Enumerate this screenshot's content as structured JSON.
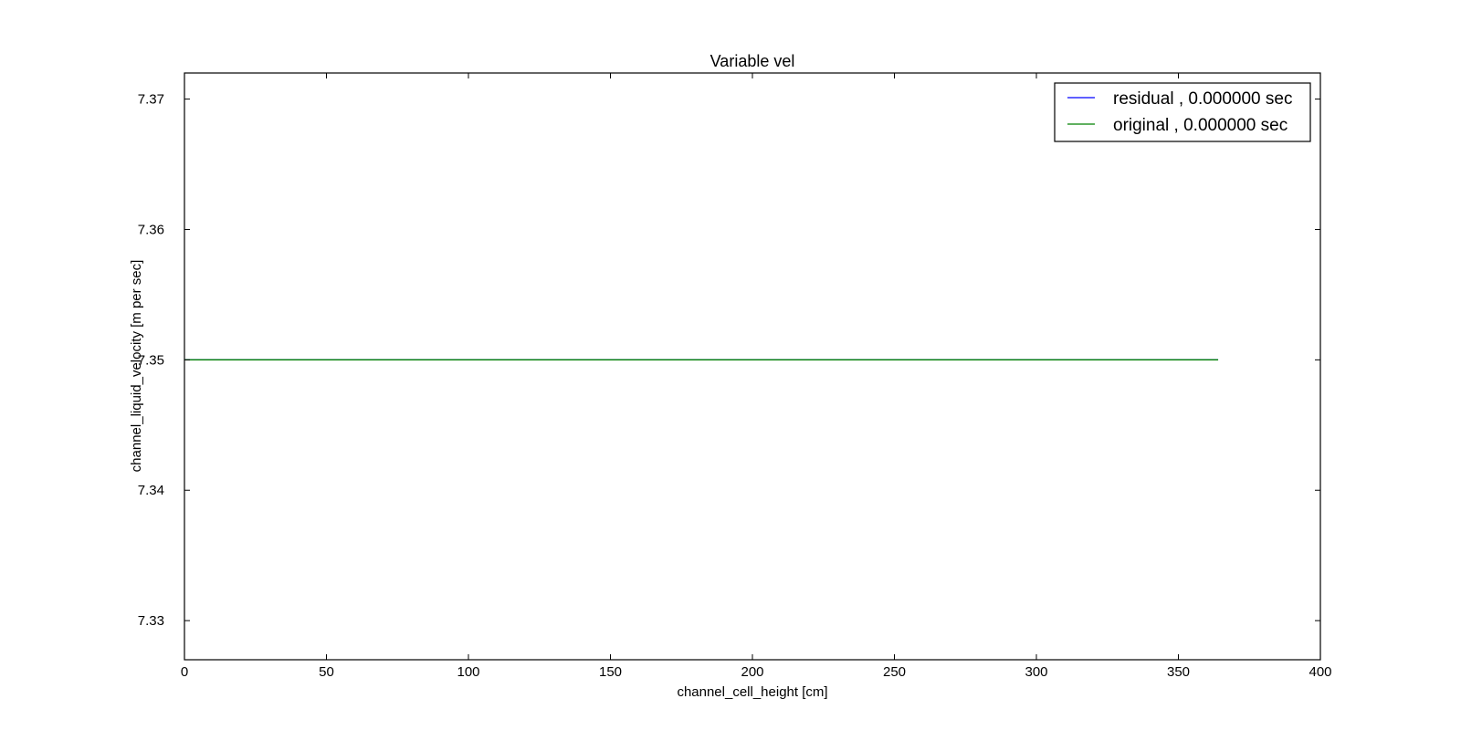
{
  "chart_data": {
    "type": "line",
    "title": "Variable vel",
    "xlabel": "channel_cell_height [cm]",
    "ylabel": "channel_liquid_velocity [m per sec]",
    "xlim": [
      0,
      400
    ],
    "ylim": [
      7.327,
      7.372
    ],
    "xticks": [
      0,
      50,
      100,
      150,
      200,
      250,
      300,
      350,
      400
    ],
    "xtick_labels": [
      "0",
      "50",
      "100",
      "150",
      "200",
      "250",
      "300",
      "350",
      "400"
    ],
    "yticks": [
      7.33,
      7.34,
      7.35,
      7.36,
      7.37
    ],
    "ytick_labels": [
      "7.33",
      "7.34",
      "7.35",
      "7.36",
      "7.37"
    ],
    "grid": false,
    "legend_position": "top-right",
    "series": [
      {
        "name": "residual , 0.000000 sec",
        "color": "#0000ff",
        "x": [
          0,
          364
        ],
        "y": [
          7.35,
          7.35
        ]
      },
      {
        "name": "original , 0.000000 sec",
        "color": "#008000",
        "x": [
          0,
          364
        ],
        "y": [
          7.35,
          7.35
        ]
      }
    ]
  }
}
